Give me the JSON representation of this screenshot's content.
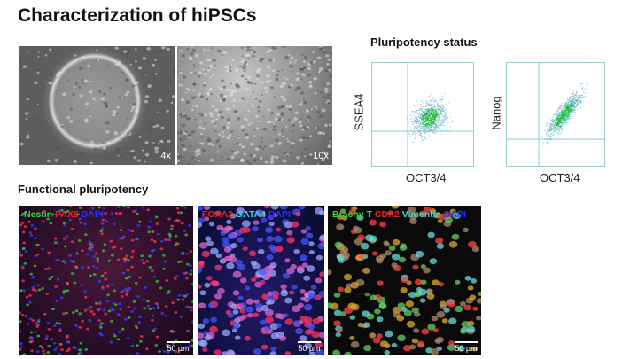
{
  "title": "Characterization of hiPSCs",
  "phase_contrast": [
    {
      "magnification": "4x"
    },
    {
      "magnification": "10x"
    }
  ],
  "pluripotency": {
    "title": "Pluripotency status",
    "plots": [
      {
        "ylabel": "SSEA4",
        "xlabel": "OCT3/4"
      },
      {
        "ylabel": "Nanog",
        "xlabel": "OCT3/4"
      }
    ]
  },
  "functional": {
    "title": "Functional pluripotency",
    "panels": [
      {
        "stains": [
          {
            "text": "Nestin",
            "color": "#33dd33"
          },
          {
            "text": "PAX6",
            "color": "#ee2222"
          },
          {
            "text": "DAPI",
            "color": "#2233ff"
          }
        ],
        "scale": "50 µm"
      },
      {
        "stains": [
          {
            "text": "FOXA2",
            "color": "#ee2222"
          },
          {
            "text": "GATA4",
            "color": "#33dddd"
          },
          {
            "text": "DAPI",
            "color": "#2233ff"
          }
        ],
        "scale": "50 µm"
      },
      {
        "stains": [
          {
            "text": "Brachy T",
            "color": "#33dd33"
          },
          {
            "text": "CDX2",
            "color": "#ee2222"
          },
          {
            "text": "Vimentin",
            "color": "#33dddd"
          },
          {
            "text": "DAPI",
            "color": "#2233ff"
          }
        ],
        "scale": "50 µm"
      }
    ]
  }
}
